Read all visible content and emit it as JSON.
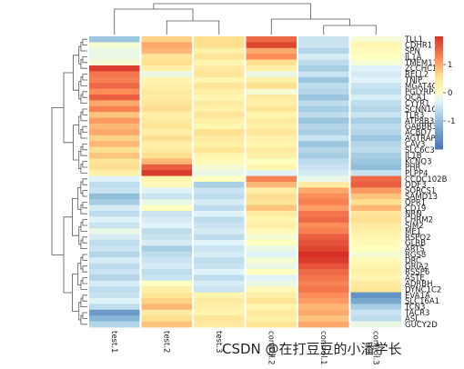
{
  "chart_data": {
    "type": "heatmap",
    "columns": [
      "test.1",
      "test.2",
      "test.3",
      "control.2",
      "control.1",
      "control.3"
    ],
    "rows": [
      "TLL1",
      "CDHR1",
      "SPN",
      "IL1A",
      "TMEM116",
      "ZCCHC13",
      "RELL2",
      "TNIP",
      "MGAT4C",
      "PGLYRP4",
      "OCA1",
      "CYYR1",
      "SCNN1G",
      "TLR3",
      "ATP8B3",
      "GABBR3",
      "ACBD7",
      "AGTRAP",
      "CAV3",
      "SLC6C3",
      "IL1B",
      "KCNQ3",
      "PHR",
      "PLPP4",
      "CCDC102B",
      "ODF3",
      "SORCS1",
      "SAMD13",
      "QPR1",
      "CD19",
      "NRN",
      "CHRM2",
      "SIM2",
      "ME1",
      "RSPO2",
      "GLRB",
      "ARTS",
      "RGS8",
      "DRC",
      "GRIA2",
      "RSSP6",
      "ASTE",
      "ADRBH",
      "DYNC1C2",
      "EVA1A",
      "SLC16A1",
      "TCN3",
      "TACR3",
      "ASL",
      "GUCY2D"
    ],
    "values": [
      [
        -0.9,
        0.7,
        0.6,
        1.5,
        -0.5,
        -0.1
      ],
      [
        -0.1,
        1.0,
        0.6,
        1.8,
        -0.5,
        0.2
      ],
      [
        -0.2,
        0.9,
        0.3,
        1.0,
        -0.7,
        0.1
      ],
      [
        -0.2,
        0.5,
        0.5,
        1.2,
        -0.4,
        0.0
      ],
      [
        -0.1,
        0.6,
        0.2,
        0.6,
        -0.6,
        -0.1
      ],
      [
        1.9,
        0.3,
        0.4,
        0.3,
        -0.8,
        -0.3
      ],
      [
        1.4,
        -0.2,
        0.5,
        -0.2,
        -0.5,
        -0.4
      ],
      [
        1.3,
        0.2,
        0.2,
        0.3,
        -0.9,
        -0.3
      ],
      [
        1.5,
        0.3,
        0.5,
        0.6,
        -0.6,
        -0.5
      ],
      [
        1.2,
        0.4,
        0.3,
        -0.1,
        -0.7,
        -0.6
      ],
      [
        1.6,
        0.4,
        0.2,
        0.4,
        -0.9,
        -0.4
      ],
      [
        1.0,
        0.5,
        0.4,
        0.3,
        -0.6,
        -0.6
      ],
      [
        1.3,
        0.6,
        0.3,
        0.5,
        -0.8,
        -0.7
      ],
      [
        0.8,
        0.3,
        0.5,
        0.2,
        -0.6,
        -0.5
      ],
      [
        1.1,
        0.4,
        0.3,
        0.4,
        -0.9,
        -0.8
      ],
      [
        0.9,
        0.5,
        0.2,
        0.3,
        -0.7,
        -0.6
      ],
      [
        1.0,
        0.3,
        0.6,
        0.5,
        -0.8,
        -0.7
      ],
      [
        0.7,
        0.6,
        0.4,
        0.3,
        -0.5,
        -0.9
      ],
      [
        0.9,
        0.3,
        0.3,
        0.2,
        -0.9,
        -0.7
      ],
      [
        0.6,
        0.4,
        0.5,
        0.4,
        -0.7,
        -0.6
      ],
      [
        0.8,
        0.6,
        0.2,
        0.3,
        -0.8,
        -0.8
      ],
      [
        0.5,
        0.9,
        0.1,
        0.0,
        -0.6,
        -0.9
      ],
      [
        0.6,
        1.6,
        -0.1,
        0.2,
        -0.5,
        -1.0
      ],
      [
        0.3,
        1.9,
        -0.2,
        -0.3,
        -0.4,
        -0.5
      ],
      [
        -0.3,
        0.2,
        0.0,
        1.3,
        -0.2,
        1.5
      ],
      [
        -0.6,
        0.1,
        -0.8,
        0.9,
        0.4,
        1.6
      ],
      [
        -0.5,
        -0.3,
        -0.5,
        0.3,
        1.0,
        1.1
      ],
      [
        -1.0,
        -0.5,
        -0.6,
        0.6,
        1.2,
        0.8
      ],
      [
        -0.8,
        -0.2,
        -0.4,
        0.5,
        1.3,
        0.6
      ],
      [
        -0.4,
        0.0,
        -0.6,
        0.8,
        1.1,
        0.9
      ],
      [
        -0.6,
        -0.5,
        -0.3,
        0.4,
        1.4,
        0.5
      ],
      [
        -0.3,
        -0.4,
        -0.6,
        0.2,
        1.5,
        0.6
      ],
      [
        -0.5,
        -0.3,
        -0.5,
        0.3,
        1.2,
        0.4
      ],
      [
        -0.2,
        -0.6,
        -0.4,
        0.1,
        1.3,
        0.3
      ],
      [
        -0.4,
        -0.5,
        -0.6,
        -0.1,
        1.6,
        0.2
      ],
      [
        -0.6,
        -0.4,
        -0.3,
        0.0,
        1.7,
        0.1
      ],
      [
        -0.5,
        -0.8,
        -0.5,
        -0.2,
        1.8,
        0.0
      ],
      [
        -0.7,
        -0.6,
        -0.4,
        -0.3,
        2.0,
        -0.1
      ],
      [
        -0.4,
        -0.5,
        -0.6,
        -0.1,
        1.9,
        0.1
      ],
      [
        -0.6,
        -0.4,
        -0.5,
        -0.2,
        1.7,
        0.2
      ],
      [
        -0.5,
        -0.6,
        -0.3,
        0.0,
        1.5,
        0.3
      ],
      [
        -0.7,
        -0.5,
        -0.6,
        -0.3,
        1.4,
        0.2
      ],
      [
        -0.4,
        0.0,
        -0.4,
        -0.2,
        1.3,
        0.4
      ],
      [
        -0.6,
        0.3,
        -0.5,
        0.1,
        1.4,
        0.5
      ],
      [
        -0.5,
        0.5,
        0.2,
        0.3,
        1.2,
        -1.6
      ],
      [
        -0.3,
        0.7,
        0.4,
        0.5,
        1.1,
        -1.3
      ],
      [
        -0.6,
        0.9,
        0.3,
        0.2,
        0.9,
        -0.8
      ],
      [
        -1.5,
        0.4,
        0.2,
        0.4,
        1.0,
        -0.5
      ],
      [
        -1.1,
        0.6,
        0.5,
        0.3,
        0.8,
        -0.6
      ],
      [
        -0.7,
        0.8,
        0.4,
        0.5,
        1.0,
        -0.2
      ]
    ],
    "color_scale": {
      "low": "#4575b4",
      "mid": "#ffffbf",
      "high": "#d73027",
      "min": -2,
      "max": 2
    },
    "legend": {
      "ticks": [
        "1",
        "0",
        "-1"
      ],
      "tick_values": [
        1,
        0,
        -1
      ],
      "position": "top-right"
    },
    "dendrograms": {
      "rows": true,
      "columns": true
    }
  },
  "watermark": "CSDN @在打豆豆的小潘学长"
}
